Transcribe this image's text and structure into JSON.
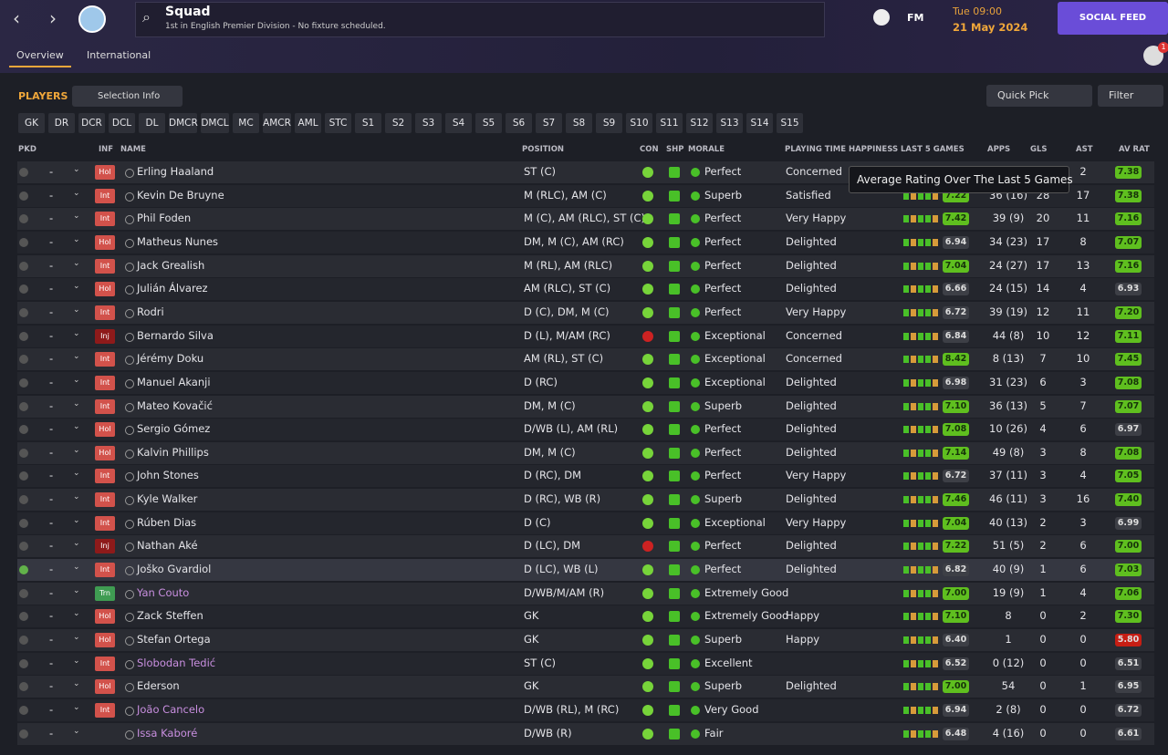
{
  "header": {
    "title": "Squad",
    "subtitle": "1st in English Premier Division - No fixture scheduled.",
    "brand": "FM",
    "time": "Tue 09:00",
    "date": "21 May 2024",
    "social_feed": "SOCIAL FEED",
    "notifications": "1"
  },
  "tabs": [
    "Overview",
    "International"
  ],
  "toolbar": {
    "section": "PLAYERS",
    "selection_info": "Selection Info",
    "quick_pick": "Quick Pick",
    "filter": "Filter"
  },
  "position_filters": [
    "GK",
    "DR",
    "DCR",
    "DCL",
    "DL",
    "DMCR",
    "DMCL",
    "MC",
    "AMCR",
    "AML",
    "STC",
    "S1",
    "S2",
    "S3",
    "S4",
    "S5",
    "S6",
    "S7",
    "S8",
    "S9",
    "S10",
    "S11",
    "S12",
    "S13",
    "S14",
    "S15"
  ],
  "tooltip": "Average Rating Over The Last 5 Games",
  "players": {
    "columns": {
      "pkd": "PKD",
      "inf": "INF",
      "name": "NAME",
      "position": "POSITION",
      "con": "CON",
      "shp": "SHP",
      "morale": "MORALE",
      "happiness": "PLAYING TIME HAPPINESS",
      "last5": "LAST 5 GAMES",
      "apps": "APPS",
      "gls": "GLS",
      "ast": "AST",
      "avrat": "AV RAT"
    },
    "rows": [
      {
        "pkd": "-",
        "inf": "Hol",
        "name": "Erling Haaland",
        "position": "ST (C)",
        "morale": "Perfect",
        "happiness": "Concerned",
        "last5": null,
        "apps": null,
        "gls": null,
        "ast": "2",
        "avrat": "7.38"
      },
      {
        "pkd": "-",
        "inf": "Int",
        "name": "Kevin De Bruyne",
        "position": "M (RLC), AM (C)",
        "morale": "Superb",
        "happiness": "Satisfied",
        "last5": "7.22",
        "apps": "36 (16)",
        "gls": "28",
        "ast": "17",
        "avrat": "7.38"
      },
      {
        "pkd": "-",
        "inf": "Int",
        "name": "Phil Foden",
        "position": "M (C), AM (RLC), ST (C)",
        "morale": "Perfect",
        "happiness": "Very Happy",
        "last5": "7.42",
        "apps": "39 (9)",
        "gls": "20",
        "ast": "11",
        "avrat": "7.16"
      },
      {
        "pkd": "-",
        "inf": "Hol",
        "name": "Matheus Nunes",
        "position": "DM, M (C), AM (RC)",
        "morale": "Perfect",
        "happiness": "Delighted",
        "last5": "6.94",
        "apps": "34 (23)",
        "gls": "17",
        "ast": "8",
        "avrat": "7.07"
      },
      {
        "pkd": "-",
        "inf": "Int",
        "name": "Jack Grealish",
        "position": "M (RL), AM (RLC)",
        "morale": "Perfect",
        "happiness": "Delighted",
        "last5": "7.04",
        "apps": "24 (27)",
        "gls": "17",
        "ast": "13",
        "avrat": "7.16"
      },
      {
        "pkd": "-",
        "inf": "Hol",
        "name": "Julián Álvarez",
        "position": "AM (RLC), ST (C)",
        "morale": "Perfect",
        "happiness": "Delighted",
        "last5": "6.66",
        "apps": "24 (15)",
        "gls": "14",
        "ast": "4",
        "avrat": "6.93"
      },
      {
        "pkd": "-",
        "inf": "Int",
        "name": "Rodri",
        "position": "D (C), DM, M (C)",
        "morale": "Perfect",
        "happiness": "Very Happy",
        "last5": "6.72",
        "apps": "39 (19)",
        "gls": "12",
        "ast": "11",
        "avrat": "7.20"
      },
      {
        "pkd": "-",
        "inf": "Inj",
        "name": "Bernardo Silva",
        "position": "D (L), M/AM (RC)",
        "morale": "Exceptional",
        "happiness": "Concerned",
        "last5": "6.84",
        "apps": "44 (8)",
        "gls": "10",
        "ast": "12",
        "avrat": "7.11"
      },
      {
        "pkd": "-",
        "inf": "Int",
        "name": "Jérémy Doku",
        "position": "AM (RL), ST (C)",
        "morale": "Exceptional",
        "happiness": "Concerned",
        "last5": "8.42",
        "apps": "8 (13)",
        "gls": "7",
        "ast": "10",
        "avrat": "7.45"
      },
      {
        "pkd": "-",
        "inf": "Int",
        "name": "Manuel Akanji",
        "position": "D (RC)",
        "morale": "Exceptional",
        "happiness": "Delighted",
        "last5": "6.98",
        "apps": "31 (23)",
        "gls": "6",
        "ast": "3",
        "avrat": "7.08"
      },
      {
        "pkd": "-",
        "inf": "Int",
        "name": "Mateo Kovačić",
        "position": "DM, M (C)",
        "morale": "Superb",
        "happiness": "Delighted",
        "last5": "7.10",
        "apps": "36 (13)",
        "gls": "5",
        "ast": "7",
        "avrat": "7.07"
      },
      {
        "pkd": "-",
        "inf": "Hol",
        "name": "Sergio Gómez",
        "position": "D/WB (L), AM (RL)",
        "morale": "Perfect",
        "happiness": "Delighted",
        "last5": "7.08",
        "apps": "10 (26)",
        "gls": "4",
        "ast": "6",
        "avrat": "6.97"
      },
      {
        "pkd": "-",
        "inf": "Hol",
        "name": "Kalvin Phillips",
        "position": "DM, M (C)",
        "morale": "Perfect",
        "happiness": "Delighted",
        "last5": "7.14",
        "apps": "49 (8)",
        "gls": "3",
        "ast": "8",
        "avrat": "7.08"
      },
      {
        "pkd": "-",
        "inf": "Int",
        "name": "John Stones",
        "position": "D (RC), DM",
        "morale": "Perfect",
        "happiness": "Very Happy",
        "last5": "6.72",
        "apps": "37 (11)",
        "gls": "3",
        "ast": "4",
        "avrat": "7.05"
      },
      {
        "pkd": "-",
        "inf": "Int",
        "name": "Kyle Walker",
        "position": "D (RC), WB (R)",
        "morale": "Superb",
        "happiness": "Delighted",
        "last5": "7.46",
        "apps": "46 (11)",
        "gls": "3",
        "ast": "16",
        "avrat": "7.40"
      },
      {
        "pkd": "-",
        "inf": "Int",
        "name": "Rúben Dias",
        "position": "D (C)",
        "morale": "Exceptional",
        "happiness": "Very Happy",
        "last5": "7.04",
        "apps": "40 (13)",
        "gls": "2",
        "ast": "3",
        "avrat": "6.99"
      },
      {
        "pkd": "-",
        "inf": "Inj",
        "name": "Nathan Aké",
        "position": "D (LC), DM",
        "morale": "Perfect",
        "happiness": "Delighted",
        "last5": "7.22",
        "apps": "51 (5)",
        "gls": "2",
        "ast": "6",
        "avrat": "7.00"
      },
      {
        "pkd": "-",
        "inf": "Int",
        "name": "Joško Gvardiol",
        "position": "D (LC), WB (L)",
        "morale": "Perfect",
        "happiness": "Delighted",
        "last5": "6.82",
        "apps": "40 (9)",
        "gls": "1",
        "ast": "6",
        "avrat": "7.03"
      },
      {
        "pkd": "-",
        "inf": "Trn",
        "name": "Yan Couto",
        "name_color": "#c98fe0",
        "position": "D/WB/M/AM (R)",
        "morale": "Extremely Good",
        "happiness": null,
        "last5": "7.00",
        "apps": "19 (9)",
        "gls": "1",
        "ast": "4",
        "avrat": "7.06"
      },
      {
        "pkd": "-",
        "inf": "Hol",
        "name": "Zack Steffen",
        "position": "GK",
        "morale": "Extremely Good",
        "happiness": "Happy",
        "last5": "7.10",
        "apps": "8",
        "gls": "0",
        "ast": "2",
        "avrat": "7.30"
      },
      {
        "pkd": "-",
        "inf": "Hol",
        "name": "Stefan Ortega",
        "position": "GK",
        "morale": "Superb",
        "happiness": "Happy",
        "last5": "6.40",
        "apps": "1",
        "gls": "0",
        "ast": "0",
        "avrat": "5.80"
      },
      {
        "pkd": "-",
        "inf": "Int",
        "name": "Slobodan Tedić",
        "name_color": "#c98fe0",
        "position": "ST (C)",
        "morale": "Excellent",
        "happiness": null,
        "last5": "6.52",
        "apps": "0 (12)",
        "gls": "0",
        "ast": "0",
        "avrat": "6.51"
      },
      {
        "pkd": "-",
        "inf": "Hol",
        "name": "Ederson",
        "position": "GK",
        "morale": "Superb",
        "happiness": "Delighted",
        "last5": "7.00",
        "apps": "54",
        "gls": "0",
        "ast": "1",
        "avrat": "6.95"
      },
      {
        "pkd": "-",
        "inf": "Int",
        "name": "João Cancelo",
        "name_color": "#c98fe0",
        "position": "D/WB (RL), M (RC)",
        "morale": "Very Good",
        "happiness": null,
        "last5": "6.94",
        "apps": "2 (8)",
        "gls": "0",
        "ast": "0",
        "avrat": "6.72"
      },
      {
        "pkd": "-",
        "inf": null,
        "name": "Issa Kaboré",
        "name_color": "#c98fe0",
        "position": "D/WB (R)",
        "morale": "Fair",
        "happiness": null,
        "last5": "6.48",
        "apps": "4 (16)",
        "gls": "0",
        "ast": "0",
        "avrat": "6.61"
      }
    ]
  }
}
